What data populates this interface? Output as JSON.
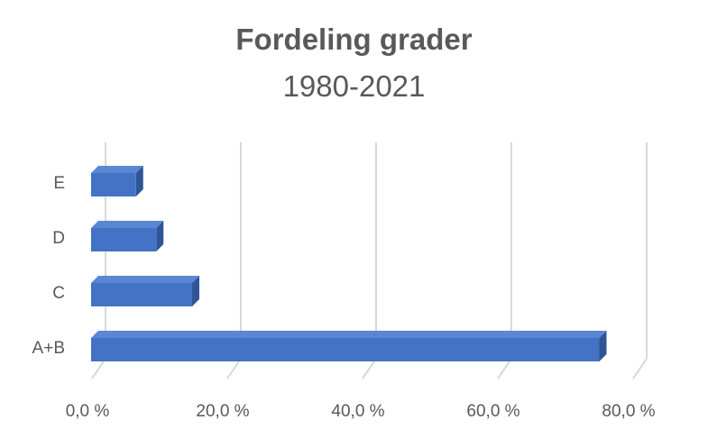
{
  "chart_data": {
    "type": "bar",
    "orientation": "horizontal",
    "title": "Fordeling grader",
    "subtitle": "1980-2021",
    "categories": [
      "E",
      "D",
      "C",
      "A+B"
    ],
    "values": [
      5.3,
      8.3,
      13.6,
      73.8
    ],
    "value_unit": "%",
    "xlim": [
      0,
      80
    ],
    "x_ticks": [
      "0,0 %",
      "20,0 %",
      "40,0 %",
      "60,0 %",
      "80,0 %"
    ],
    "x_tick_values": [
      0,
      20,
      40,
      60,
      80
    ],
    "grid": true,
    "legend": "none",
    "bar_color": "#4472c4",
    "bar_side_color": "#2f5597",
    "bar_top_color": "#5b86d4",
    "grid_color": "#d9d9d9",
    "text_color": "#595959"
  }
}
